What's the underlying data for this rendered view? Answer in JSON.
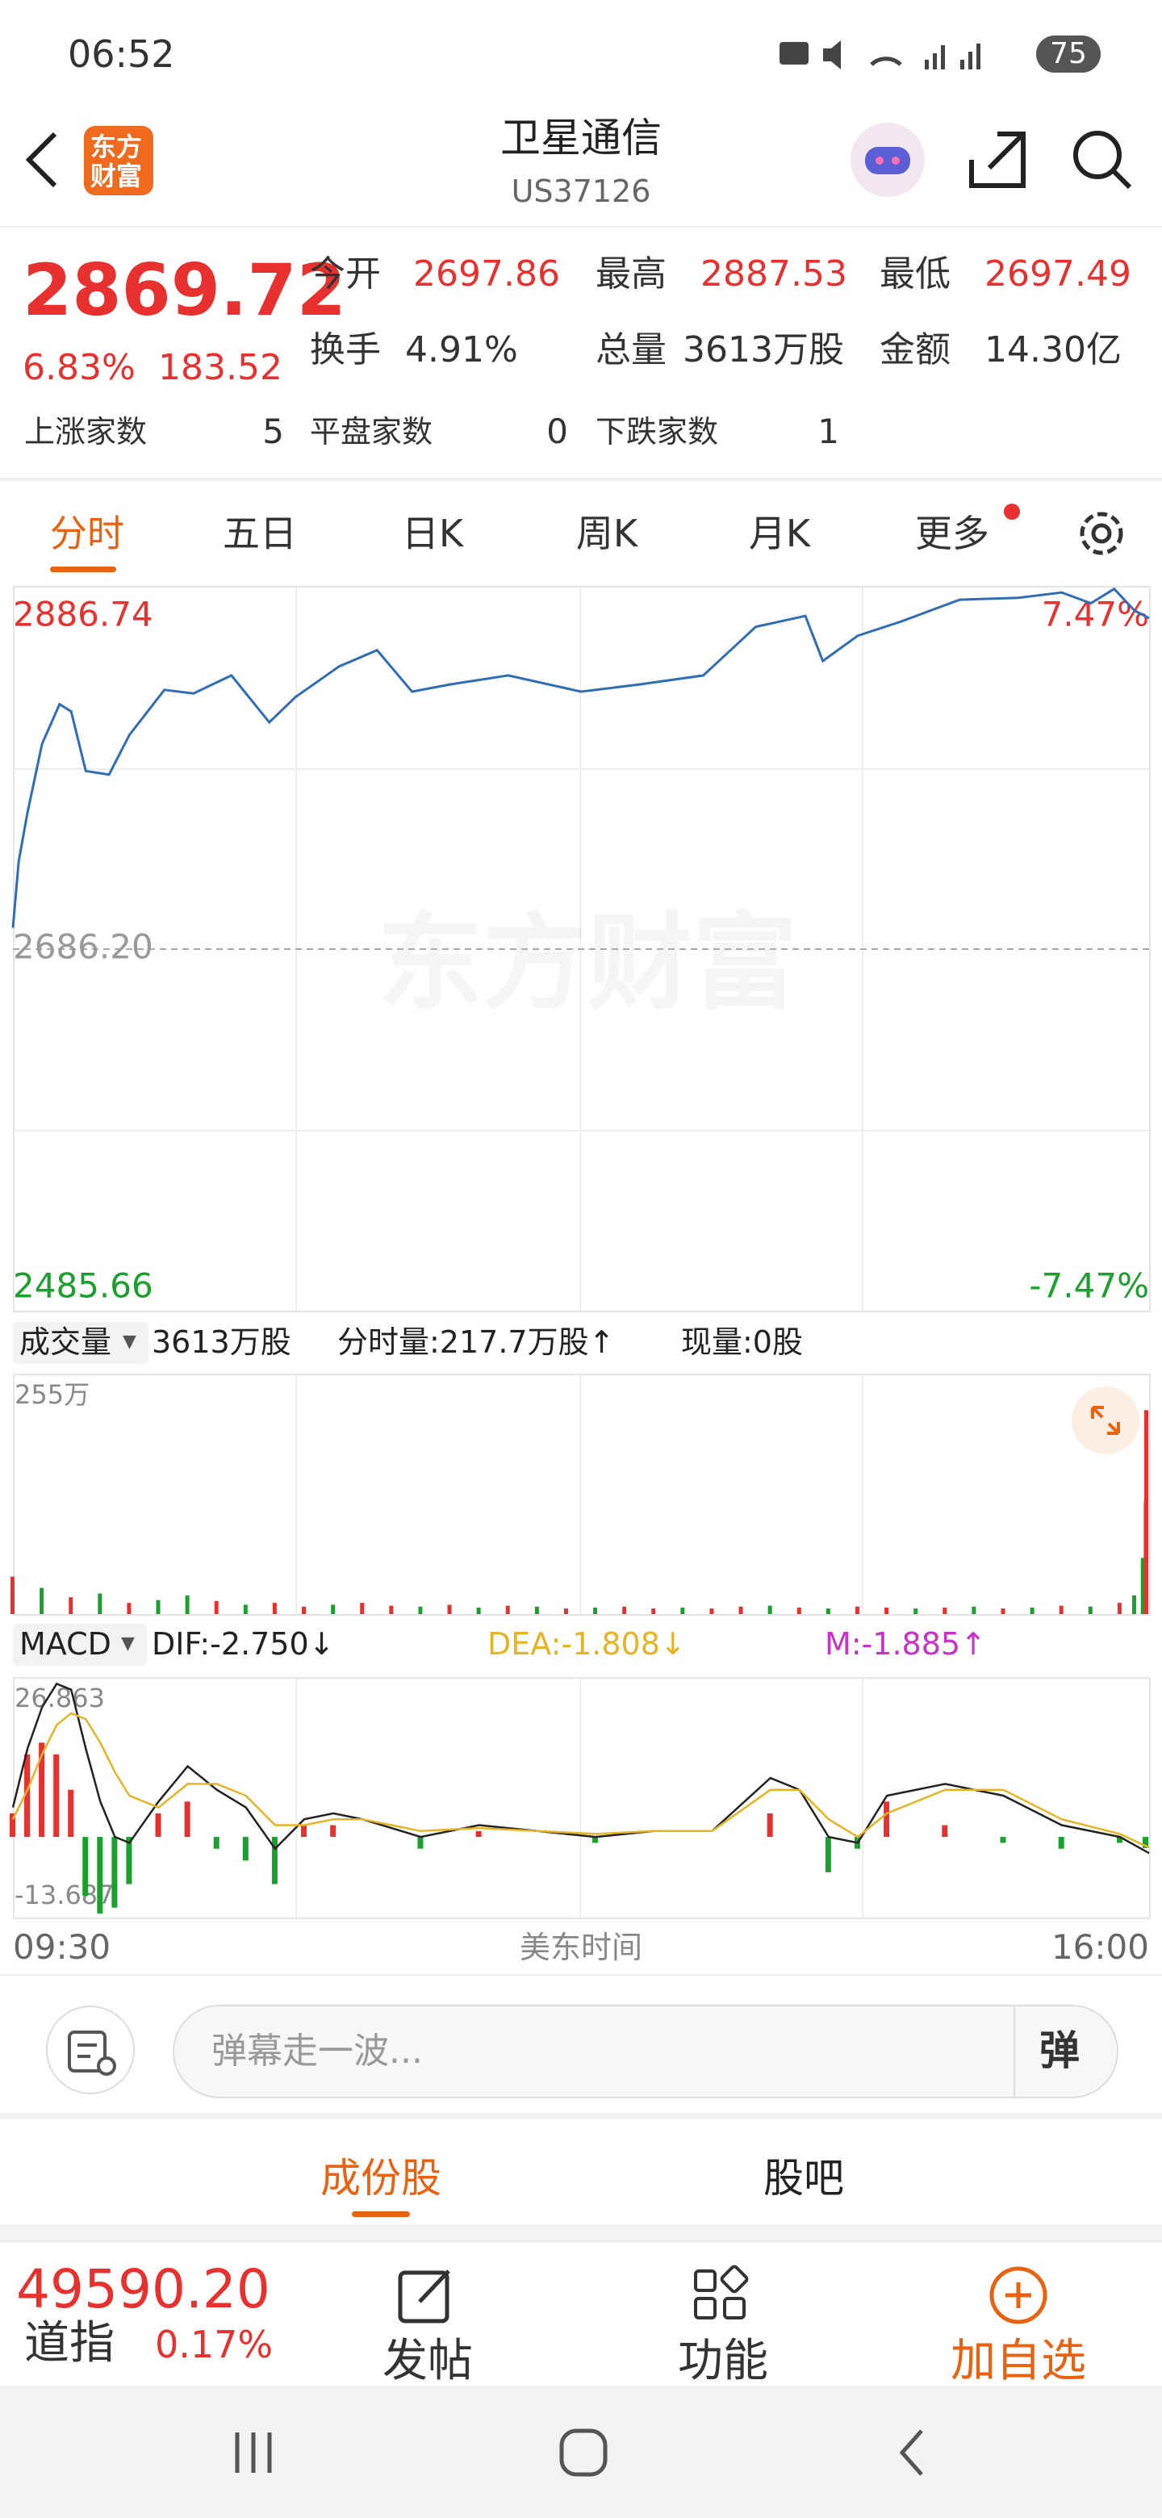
{
  "status_bar": {
    "time": "06:52",
    "battery": "75"
  },
  "header": {
    "logo": [
      "东方",
      "财富"
    ],
    "title": "卫星通信",
    "subtitle": "US37126"
  },
  "quote": {
    "price": "2869.72",
    "change_pct": "6.83%",
    "change": "183.52",
    "fields": [
      {
        "label": "今开",
        "value": "2697.86"
      },
      {
        "label": "最高",
        "value": "2887.53"
      },
      {
        "label": "最低",
        "value": "2697.49"
      },
      {
        "label": "换手",
        "value": "4.91%"
      },
      {
        "label": "总量",
        "value": "3613万股"
      },
      {
        "label": "金额",
        "value": "14.30亿"
      }
    ],
    "counts": [
      {
        "label": "上涨家数",
        "value": "5"
      },
      {
        "label": "平盘家数",
        "value": "0"
      },
      {
        "label": "下跌家数",
        "value": "1"
      }
    ]
  },
  "tabs": [
    "分时",
    "五日",
    "日K",
    "周K",
    "月K",
    "更多"
  ],
  "watermark": "东方财富",
  "chart_data": [
    {
      "type": "line",
      "color": "#2f6eb5",
      "xlim": [
        0,
        390
      ],
      "x": [
        0,
        2,
        5,
        10,
        16,
        20,
        25,
        33,
        40,
        52,
        62,
        75,
        88,
        97,
        112,
        125,
        137,
        150,
        170,
        195,
        215,
        237,
        255,
        272,
        278,
        290,
        305,
        325,
        345,
        360,
        370,
        378,
        385,
        390
      ],
      "values": [
        2698,
        2735,
        2762,
        2800,
        2822,
        2818,
        2785,
        2783,
        2805,
        2830,
        2828,
        2838,
        2812,
        2826,
        2843,
        2852,
        2829,
        2833,
        2838,
        2829,
        2833,
        2838,
        2865,
        2871,
        2846,
        2860,
        2868,
        2880,
        2881,
        2884,
        2878,
        2886,
        2874,
        2869.72
      ],
      "ylim": [
        2485.66,
        2886.74
      ],
      "yticks": [
        2485.66,
        {
          "value": 2686.2,
          "label": "2686.20"
        },
        2886.74
      ],
      "y2lim": [
        -7.47,
        7.47
      ],
      "y2ticks": [
        {
          "value": -7.47,
          "label": "-7.47%"
        },
        {
          "value": 7.47,
          "label": "7.47%"
        }
      ],
      "up_color": "#e8312f",
      "down_color": "#1aa02d"
    },
    {
      "type": "bar",
      "header": {
        "selector": "成交量",
        "total": "3613万股",
        "minute": "分时量:217.7万股↑",
        "current": "现量:0股"
      },
      "xlim": [
        0,
        390
      ],
      "x": [
        0,
        10,
        20,
        30,
        40,
        50,
        60,
        70,
        80,
        90,
        100,
        110,
        120,
        130,
        140,
        150,
        160,
        170,
        180,
        190,
        200,
        210,
        220,
        230,
        240,
        250,
        260,
        270,
        280,
        290,
        300,
        310,
        320,
        330,
        340,
        350,
        360,
        370,
        380,
        385,
        388,
        389,
        390
      ],
      "values": [
        40,
        28,
        18,
        22,
        12,
        15,
        20,
        14,
        10,
        12,
        8,
        10,
        12,
        9,
        8,
        10,
        7,
        9,
        8,
        6,
        7,
        8,
        6,
        7,
        6,
        8,
        9,
        7,
        6,
        8,
        7,
        6,
        7,
        8,
        6,
        7,
        9,
        8,
        12,
        20,
        60,
        120,
        217.7
      ],
      "colors": [
        "#e8312f",
        "#1aa02d",
        "#e8312f",
        "#1aa02d",
        "#e8312f",
        "#1aa02d",
        "#1aa02d",
        "#e8312f",
        "#1aa02d",
        "#e8312f",
        "#e8312f",
        "#1aa02d",
        "#e8312f",
        "#e8312f",
        "#1aa02d",
        "#e8312f",
        "#1aa02d",
        "#e8312f",
        "#1aa02d",
        "#e8312f",
        "#1aa02d",
        "#e8312f",
        "#e8312f",
        "#1aa02d",
        "#e8312f",
        "#e8312f",
        "#1aa02d",
        "#e8312f",
        "#1aa02d",
        "#e8312f",
        "#e8312f",
        "#1aa02d",
        "#e8312f",
        "#1aa02d",
        "#e8312f",
        "#1aa02d",
        "#e8312f",
        "#1aa02d",
        "#e8312f",
        "#1aa02d",
        "#1aa02d",
        "#1aa02d",
        "#e8312f"
      ],
      "ylim": [
        0,
        255
      ],
      "yticks": [
        {
          "value": 255,
          "label": "255万"
        }
      ]
    },
    {
      "type": "macd",
      "header": {
        "selector": "MACD",
        "dif": "DIF:-2.750↓",
        "dea": "DEA:-1.808↓",
        "m": "M:-1.885↑"
      },
      "xlim": [
        0,
        390
      ],
      "xticks": [
        {
          "value": 0,
          "label": "09:30"
        },
        {
          "value": 390,
          "label": "16:00"
        }
      ],
      "xlabel": "美东时间",
      "x": [
        0,
        5,
        10,
        15,
        20,
        25,
        30,
        35,
        40,
        50,
        60,
        70,
        80,
        90,
        100,
        110,
        120,
        140,
        160,
        180,
        200,
        220,
        240,
        260,
        270,
        280,
        290,
        300,
        320,
        340,
        360,
        380,
        390
      ],
      "series": [
        {
          "color": "#222222",
          "values": [
            5,
            15,
            22,
            26,
            25,
            15,
            6,
            0,
            -1,
            6,
            12,
            8,
            5,
            -2,
            3,
            4,
            3,
            0,
            2,
            1,
            0,
            1,
            1,
            10,
            8,
            0,
            -1,
            7,
            9,
            7,
            2,
            0,
            -2.75
          ]
        },
        {
          "color": "#e6b422",
          "values": [
            3,
            8,
            14,
            19,
            21,
            20,
            16,
            11,
            7,
            5,
            9,
            9,
            7,
            2,
            2,
            3,
            3,
            1,
            1.5,
            1,
            0.5,
            1,
            1,
            8,
            8,
            3,
            0,
            4,
            8,
            8,
            3,
            0.5,
            -1.808
          ]
        },
        {
          "kind": "bar",
          "values": [
            4,
            14,
            16,
            14,
            8,
            -10,
            -13,
            -12,
            -8,
            4,
            6,
            -2,
            -4,
            -8,
            2,
            2,
            0,
            -2,
            1,
            0,
            -1,
            0,
            0,
            4,
            0,
            -6,
            -2,
            6,
            2,
            -1,
            -2,
            -1,
            -1.885
          ]
        }
      ],
      "up_color": "#e8312f",
      "down_color": "#1aa02d",
      "ylim": [
        -13.687,
        26.863
      ],
      "yticks": [
        -13.687,
        26.863
      ]
    }
  ],
  "comment": {
    "placeholder": "弹幕走一波...",
    "button": "弹"
  },
  "section_tabs": [
    "成份股",
    "股吧"
  ],
  "bottom": {
    "index_value": "49590.20",
    "index_name": "道指",
    "index_change": "0.17%",
    "actions": [
      "发帖",
      "功能",
      "加自选"
    ]
  }
}
